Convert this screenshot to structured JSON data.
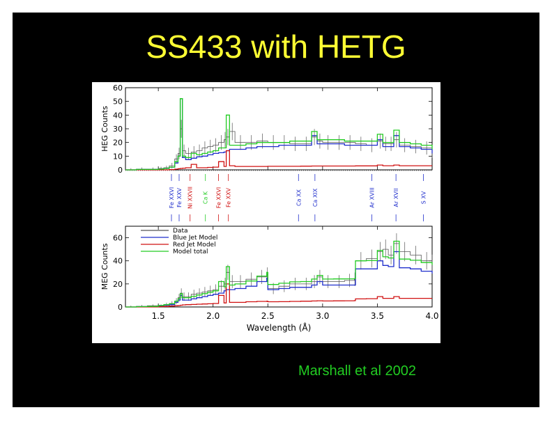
{
  "slide": {
    "title": "SS433 with HETG",
    "credit": "Marshall et al 2002"
  },
  "colors": {
    "background": "#000000",
    "title": "#ffff33",
    "credit": "#22cc22",
    "data": "#555555",
    "blue_jet": "#1f2ecc",
    "red_jet": "#d01010",
    "model_total": "#22cc22"
  },
  "chart_data": [
    {
      "type": "line",
      "panel": "top",
      "ylabel": "HEG Counts",
      "xlim": [
        1.2,
        4.0
      ],
      "ylim": [
        0,
        60
      ],
      "yticks": [
        0,
        10,
        20,
        30,
        40,
        50,
        60
      ],
      "x": [
        1.2,
        1.3,
        1.4,
        1.5,
        1.55,
        1.6,
        1.65,
        1.68,
        1.7,
        1.72,
        1.75,
        1.8,
        1.85,
        1.9,
        1.95,
        2.0,
        2.05,
        2.1,
        2.12,
        2.15,
        2.2,
        2.3,
        2.4,
        2.5,
        2.6,
        2.7,
        2.8,
        2.9,
        2.95,
        3.0,
        3.1,
        3.2,
        3.3,
        3.4,
        3.5,
        3.55,
        3.6,
        3.65,
        3.7,
        3.8,
        3.9,
        4.0
      ],
      "series": [
        {
          "name": "Data",
          "values": [
            0,
            0.5,
            0.5,
            1,
            1.5,
            3,
            8,
            12,
            30,
            14,
            12,
            13,
            14,
            16,
            17,
            18,
            20,
            22,
            24,
            28,
            20,
            20,
            21,
            20,
            20,
            19,
            19,
            24,
            21,
            20,
            20,
            20,
            19,
            18,
            21,
            19,
            19,
            22,
            18,
            17,
            16,
            13
          ]
        },
        {
          "name": "Blue Jet Model",
          "values": [
            0,
            0.3,
            0.3,
            0.5,
            1,
            2,
            5,
            10,
            52,
            9,
            7.5,
            8.5,
            9.5,
            10,
            11,
            12,
            12.5,
            13,
            14,
            15,
            15,
            16,
            17,
            17,
            18,
            18,
            18,
            25,
            19,
            19,
            19,
            18,
            18,
            18,
            22,
            17,
            17,
            25,
            17,
            16,
            15,
            12
          ]
        },
        {
          "name": "Red Jet Model",
          "values": [
            0,
            0,
            0,
            0,
            0,
            0.2,
            0.5,
            0.8,
            1,
            1.2,
            1.5,
            4,
            1.5,
            1.5,
            1.8,
            2,
            6,
            2.5,
            14,
            3,
            2.5,
            2.5,
            2.5,
            2.6,
            2.6,
            2.6,
            2.7,
            2.8,
            2.8,
            2.8,
            2.8,
            2.8,
            2.9,
            2.9,
            3.5,
            3,
            3,
            3.5,
            3,
            3,
            3,
            3
          ]
        },
        {
          "name": "Model total",
          "values": [
            0,
            0.3,
            0.3,
            0.5,
            1,
            2,
            6,
            10,
            52,
            10,
            9,
            12,
            11,
            12,
            13,
            14,
            16,
            16,
            40,
            18,
            18,
            19,
            20,
            20,
            20,
            21,
            21,
            28,
            22,
            22,
            22,
            21,
            21,
            21,
            26,
            20,
            20,
            29,
            20,
            19,
            18,
            15
          ]
        }
      ]
    },
    {
      "type": "line",
      "panel": "bottom",
      "xlabel": "Wavelength (Å)",
      "ylabel": "MEG Counts",
      "xlim": [
        1.2,
        4.0
      ],
      "ylim": [
        0,
        70
      ],
      "yticks": [
        0,
        20,
        40,
        60
      ],
      "xticks": [
        "1.5",
        "2.0",
        "2.5",
        "3.0",
        "3.5",
        "4.0"
      ],
      "x": [
        1.2,
        1.3,
        1.4,
        1.5,
        1.55,
        1.6,
        1.65,
        1.68,
        1.7,
        1.72,
        1.75,
        1.8,
        1.85,
        1.9,
        1.95,
        2.0,
        2.05,
        2.1,
        2.12,
        2.15,
        2.2,
        2.3,
        2.4,
        2.49,
        2.5,
        2.6,
        2.7,
        2.8,
        2.9,
        2.95,
        3.0,
        3.1,
        3.2,
        3.29,
        3.3,
        3.4,
        3.5,
        3.55,
        3.6,
        3.65,
        3.7,
        3.8,
        3.9,
        4.0
      ],
      "series": [
        {
          "name": "Data",
          "values": [
            0,
            0.5,
            1,
            1,
            2,
            3,
            5,
            8,
            12,
            9,
            9,
            11,
            12,
            13,
            14,
            15,
            18,
            20,
            30,
            22,
            22,
            24,
            26,
            28,
            16,
            18,
            20,
            20,
            22,
            26,
            22,
            22,
            23,
            24,
            40,
            42,
            48,
            50,
            45,
            55,
            48,
            45,
            40,
            38
          ]
        },
        {
          "name": "Blue Jet Model",
          "values": [
            0,
            0.3,
            0.5,
            1,
            1.5,
            2,
            4,
            6,
            10,
            6,
            6,
            7,
            8,
            9,
            10,
            11,
            12,
            14,
            15,
            15,
            16,
            18,
            22,
            25,
            15,
            16,
            17,
            17,
            19,
            22,
            19,
            19,
            19,
            19,
            33,
            33,
            40,
            36,
            35,
            48,
            34,
            33,
            31,
            29
          ]
        },
        {
          "name": "Red Jet Model",
          "values": [
            0,
            0,
            0,
            0.3,
            0.5,
            0.8,
            1,
            1.2,
            1.5,
            1.8,
            2,
            2.2,
            2.4,
            2.6,
            2.8,
            3,
            10,
            3.5,
            20,
            4,
            4,
            4.5,
            4.8,
            5,
            4.5,
            4.6,
            4.8,
            5,
            5.2,
            5.4,
            5.2,
            5.3,
            5.4,
            5.5,
            7,
            7.2,
            9,
            7.5,
            7.5,
            9,
            7.5,
            7.5,
            7.5,
            7.5
          ]
        },
        {
          "name": "Model total",
          "values": [
            0,
            0.3,
            0.5,
            1.3,
            2,
            2.8,
            5,
            7.2,
            11.5,
            8,
            8,
            9.2,
            10.4,
            11.6,
            12.8,
            14,
            22,
            17.5,
            35,
            19,
            20,
            22.5,
            26.8,
            30,
            19.5,
            20.6,
            21.8,
            22,
            24.2,
            27.4,
            24.2,
            24.3,
            24.4,
            24.5,
            40,
            40.2,
            49,
            43.5,
            42.5,
            57,
            41.5,
            40.5,
            38.5,
            36.5
          ]
        }
      ],
      "legend": [
        "Data",
        "Blue Jet Model",
        "Red Jet Model",
        "Model total"
      ]
    }
  ],
  "line_labels": [
    {
      "text": "Fe XXVI",
      "x": 1.62,
      "color": "#1f2ecc"
    },
    {
      "text": "Fe XXV",
      "x": 1.69,
      "color": "#1f2ecc"
    },
    {
      "text": "Ni XXVII",
      "x": 1.79,
      "color": "#d01010"
    },
    {
      "text": "Ca K",
      "x": 1.93,
      "color": "#22cc22"
    },
    {
      "text": "Fe XXVI",
      "x": 2.05,
      "color": "#d01010"
    },
    {
      "text": "Fe XXV",
      "x": 2.14,
      "color": "#d01010"
    },
    {
      "text": "Ca XX",
      "x": 2.78,
      "color": "#1f2ecc"
    },
    {
      "text": "Ca XIX",
      "x": 2.93,
      "color": "#1f2ecc"
    },
    {
      "text": "Ar XVIII",
      "x": 3.45,
      "color": "#1f2ecc"
    },
    {
      "text": "Ar XVII",
      "x": 3.67,
      "color": "#1f2ecc"
    },
    {
      "text": "S XV",
      "x": 3.92,
      "color": "#1f2ecc"
    }
  ]
}
